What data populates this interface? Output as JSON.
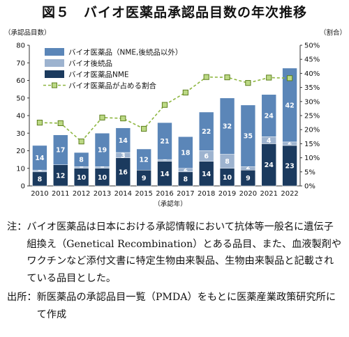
{
  "title": "図５　バイオ医薬品承認品目数の年次推移",
  "y_left_unit": "（承認品目数）",
  "y_right_unit": "（割合）",
  "x_unit": "（承認年）",
  "note_label": "注：",
  "note_text": "バイオ医薬品は日本における承認情報において抗体等一般名に遺伝子組換え（Genetical Recombination）とある品目、また、血液製剤やワクチンなど添付文書に特定生物由来製品、生物由来製品と記載されている品目とした。",
  "source_label": "出所：",
  "source_text": "新医薬品の承認品目一覧（PMDA）をもとに医薬産業政策研究所にて作成",
  "colors": {
    "nme": "#1b3a5e",
    "follow": "#9db3cf",
    "bio_non_nme": "#5b86b8",
    "share_line": "#8db63f",
    "share_marker_fill": "#bcd985",
    "share_marker_edge": "#5d7f1e"
  },
  "chart_data": {
    "type": "bar",
    "stacked": true,
    "categories": [
      "2010",
      "2011",
      "2012",
      "2013",
      "2014",
      "2015",
      "2016",
      "2017",
      "2018",
      "2019",
      "2020",
      "2021",
      "2022"
    ],
    "series": [
      {
        "name": "バイオ医薬品NME",
        "values": [
          8,
          12,
          10,
          10,
          16,
          9,
          14,
          8,
          14,
          10,
          9,
          24,
          23
        ],
        "color_key": "nme"
      },
      {
        "name": "バイオ後続品",
        "values": [
          1,
          0,
          1,
          1,
          3,
          0,
          1,
          2,
          6,
          8,
          2,
          4,
          2
        ],
        "color_key": "follow"
      },
      {
        "name": "バイオ医薬品（NME,後続品以外）",
        "values": [
          14,
          17,
          8,
          19,
          14,
          12,
          21,
          18,
          22,
          32,
          35,
          24,
          42
        ],
        "color_key": "bio_non_nme"
      }
    ],
    "line_series": {
      "name": "バイオ医薬品が占める割合",
      "axis": "right",
      "values": [
        22.5,
        22.3,
        15.8,
        24.3,
        24.0,
        20.3,
        28.8,
        33.2,
        38.7,
        38.6,
        36.6,
        38.5,
        38.3
      ]
    },
    "ylim": [
      0,
      80
    ],
    "yticks": [
      0,
      10,
      20,
      30,
      40,
      50,
      60,
      70,
      80
    ],
    "y2lim": [
      0,
      50
    ],
    "y2ticks": [
      "0%",
      "5%",
      "10%",
      "15%",
      "20%",
      "25%",
      "30%",
      "35%",
      "40%",
      "45%",
      "50%"
    ],
    "legend_order": [
      "バイオ医薬品（NME,後続品以外）",
      "バイオ後続品",
      "バイオ医薬品NME",
      "バイオ医薬品が占める割合"
    ],
    "legend_placement": "top-left",
    "grid": false
  }
}
